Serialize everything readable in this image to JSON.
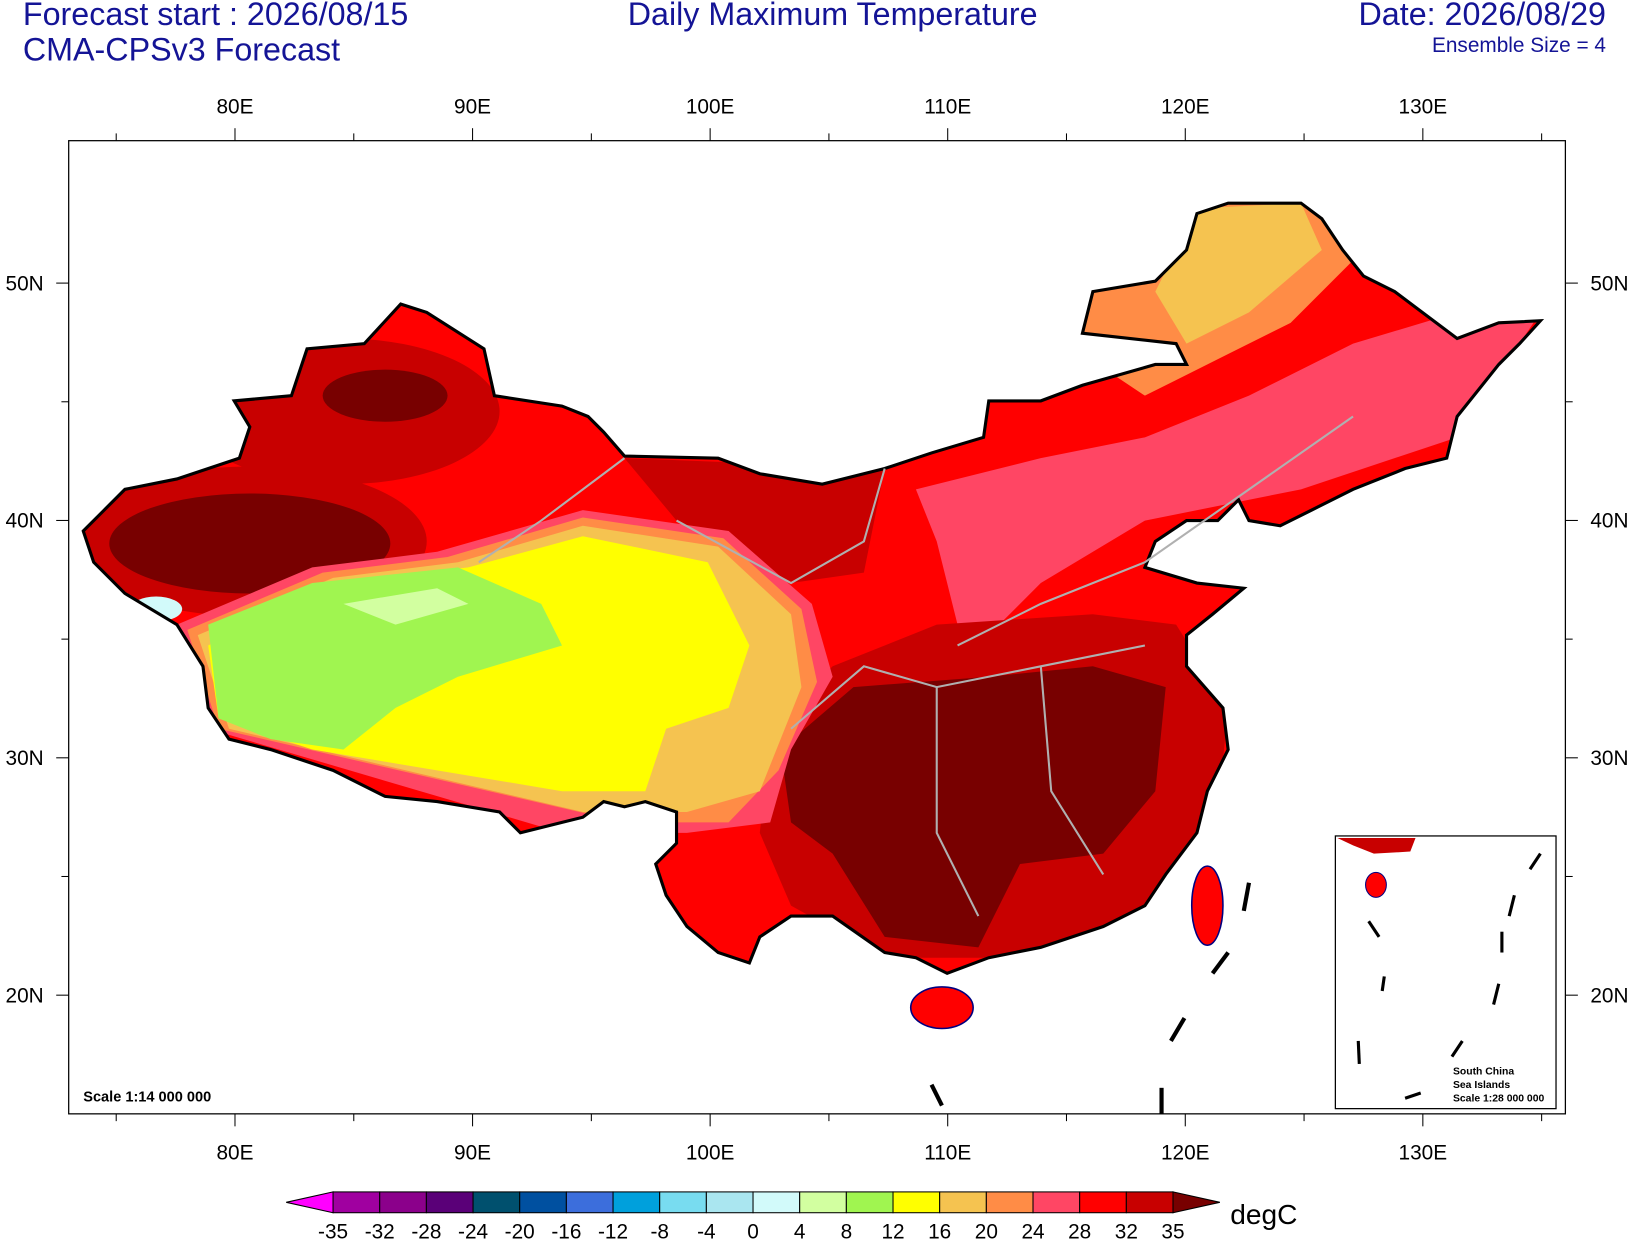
{
  "header": {
    "left_line1": "Forecast start : 2026/08/15",
    "left_line2": "CMA-CPSv3 Forecast",
    "title": "Daily Maximum Temperature",
    "date": "Date: 2026/08/29",
    "ensemble": "Ensemble Size = 4"
  },
  "map": {
    "lonlim": [
      73,
      136
    ],
    "latlim": [
      15,
      56
    ],
    "lon_ticks": [
      {
        "value": 80,
        "label": "80E"
      },
      {
        "value": 90,
        "label": "90E"
      },
      {
        "value": 100,
        "label": "100E"
      },
      {
        "value": 110,
        "label": "110E"
      },
      {
        "value": 120,
        "label": "120E"
      },
      {
        "value": 130,
        "label": "130E"
      }
    ],
    "lon_minor_ticks": [
      75,
      85,
      95,
      105,
      115,
      125,
      135
    ],
    "lat_ticks": [
      {
        "value": 20,
        "label": "20N"
      },
      {
        "value": 30,
        "label": "30N"
      },
      {
        "value": 40,
        "label": "40N"
      },
      {
        "value": 50,
        "label": "50N"
      }
    ],
    "lat_minor_ticks": [
      25,
      35,
      45
    ],
    "scale": "Scale 1:14 000 000",
    "inset_lines": [
      "South China",
      "Sea Islands",
      "Scale 1:28 000 000"
    ]
  },
  "colorbar": {
    "levels": [
      -35,
      -32,
      -28,
      -24,
      -20,
      -16,
      -12,
      -8,
      -4,
      0,
      4,
      8,
      12,
      16,
      20,
      24,
      28,
      32,
      35
    ],
    "colors": [
      "#ff00ff",
      "#a000a0",
      "#8b008b",
      "#5a0078",
      "#00506e",
      "#0050a0",
      "#3c6edc",
      "#00a0dc",
      "#78dcf0",
      "#aae6f0",
      "#d2fafa",
      "#d2ffa0",
      "#a0f550",
      "#ffff00",
      "#f5c350",
      "#ff8c46",
      "#ff4664",
      "#ff0000",
      "#c80000",
      "#780000"
    ],
    "unit": "degC"
  }
}
